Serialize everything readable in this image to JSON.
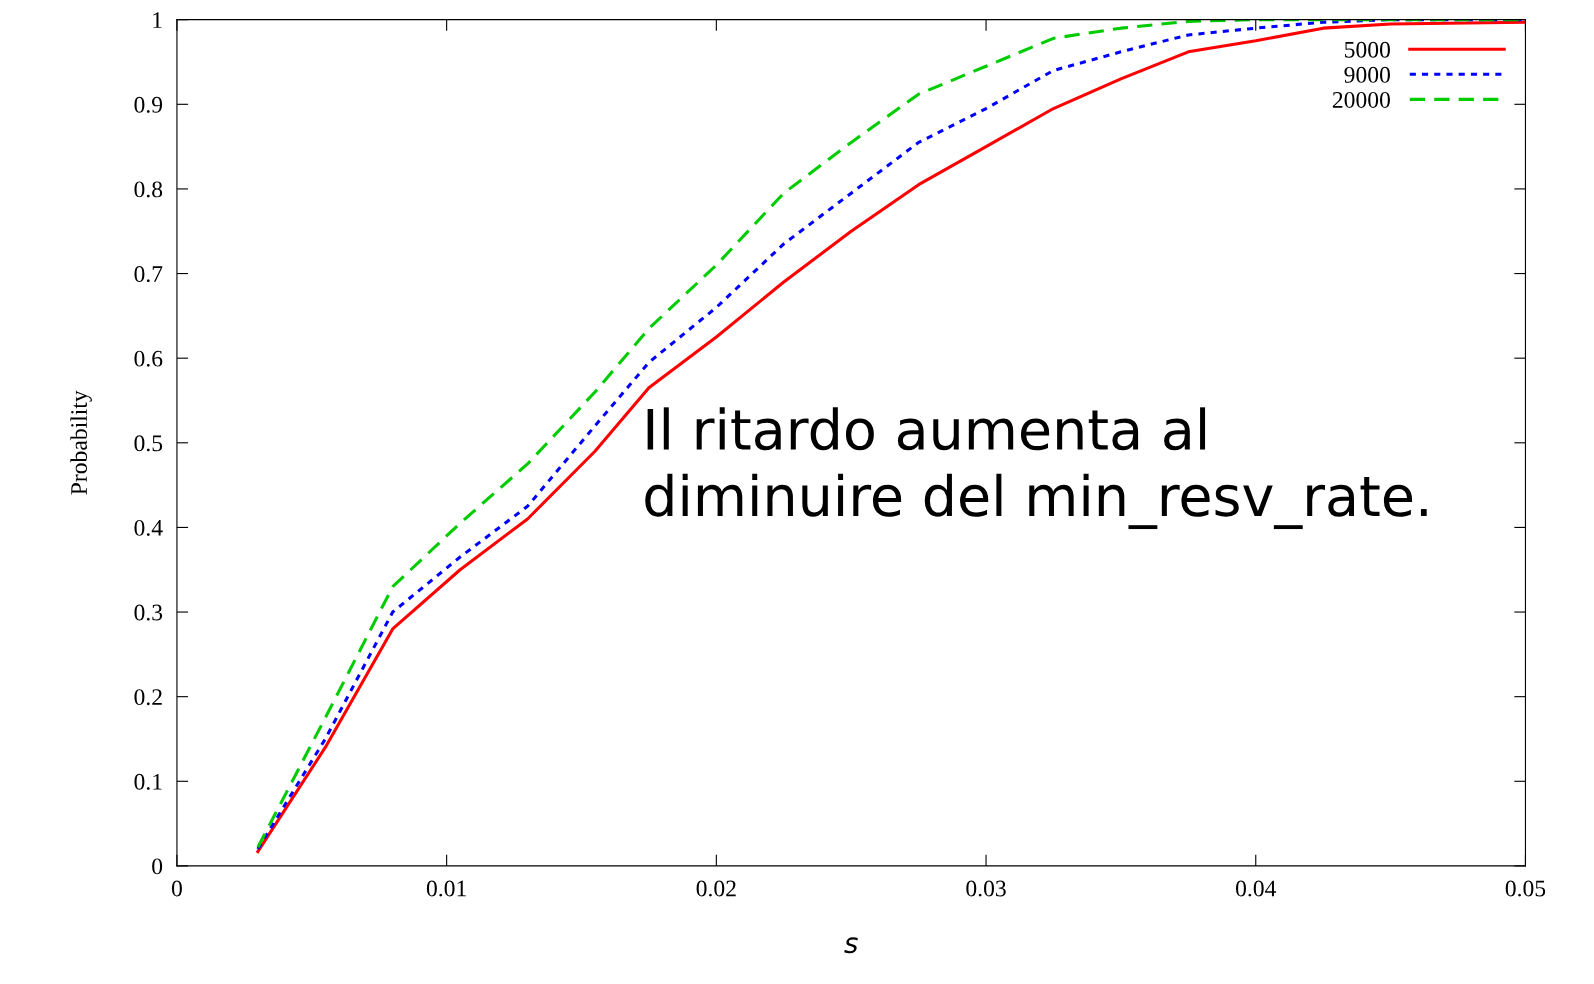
{
  "chart_data": {
    "type": "line",
    "xlabel": "s",
    "ylabel": "Probability",
    "xlim": [
      0,
      0.05
    ],
    "xticks": [
      {
        "value": 0,
        "label": "0"
      },
      0.01,
      0.02,
      0.03,
      0.04,
      0.05
    ],
    "ylim": [
      0,
      1
    ],
    "yticks": [
      {
        "value": 0,
        "label": "0"
      },
      0.1,
      0.2,
      0.3,
      0.4,
      0.5,
      0.6,
      0.7,
      0.8,
      0.9,
      {
        "value": 1,
        "label": "1"
      }
    ],
    "grid": false,
    "legend": "top right",
    "marker": "none",
    "annotations": [
      {
        "text": "Il ritardo aumenta al\ndiminuire del min_resv_rate."
      }
    ],
    "series": [
      {
        "name": "5000",
        "color": "#ff0000",
        "line_style": "solid",
        "x": [
          0.003,
          0.0055,
          0.008,
          0.0105,
          0.013,
          0.0155,
          0.0175,
          0.02,
          0.0225,
          0.025,
          0.0275,
          0.03,
          0.0325,
          0.035,
          0.0375,
          0.04,
          0.0425,
          0.045,
          0.05
        ],
        "values": [
          0.017,
          0.14,
          0.28,
          0.35,
          0.41,
          0.49,
          0.565,
          0.625,
          0.69,
          0.75,
          0.805,
          0.85,
          0.895,
          0.93,
          0.962,
          0.975,
          0.99,
          0.995,
          0.997
        ]
      },
      {
        "name": "9000",
        "color": "#0000ff",
        "line_style": "dotted",
        "x": [
          0.003,
          0.0055,
          0.008,
          0.0105,
          0.013,
          0.0155,
          0.0175,
          0.02,
          0.0225,
          0.025,
          0.0275,
          0.03,
          0.0325,
          0.035,
          0.0375,
          0.04,
          0.0425,
          0.045,
          0.05
        ],
        "values": [
          0.02,
          0.15,
          0.3,
          0.365,
          0.425,
          0.52,
          0.595,
          0.66,
          0.735,
          0.795,
          0.855,
          0.895,
          0.94,
          0.962,
          0.982,
          0.99,
          0.997,
          1.0,
          1.0
        ]
      },
      {
        "name": "20000",
        "color": "#00cc00",
        "line_style": "dashed",
        "x": [
          0.003,
          0.0055,
          0.008,
          0.0105,
          0.013,
          0.0155,
          0.0175,
          0.02,
          0.0225,
          0.025,
          0.0275,
          0.03,
          0.0325,
          0.035,
          0.0375,
          0.04,
          0.05
        ],
        "values": [
          0.022,
          0.175,
          0.33,
          0.405,
          0.475,
          0.56,
          0.635,
          0.71,
          0.795,
          0.855,
          0.912,
          0.945,
          0.978,
          0.99,
          0.998,
          1.0,
          1.0
        ]
      }
    ]
  }
}
